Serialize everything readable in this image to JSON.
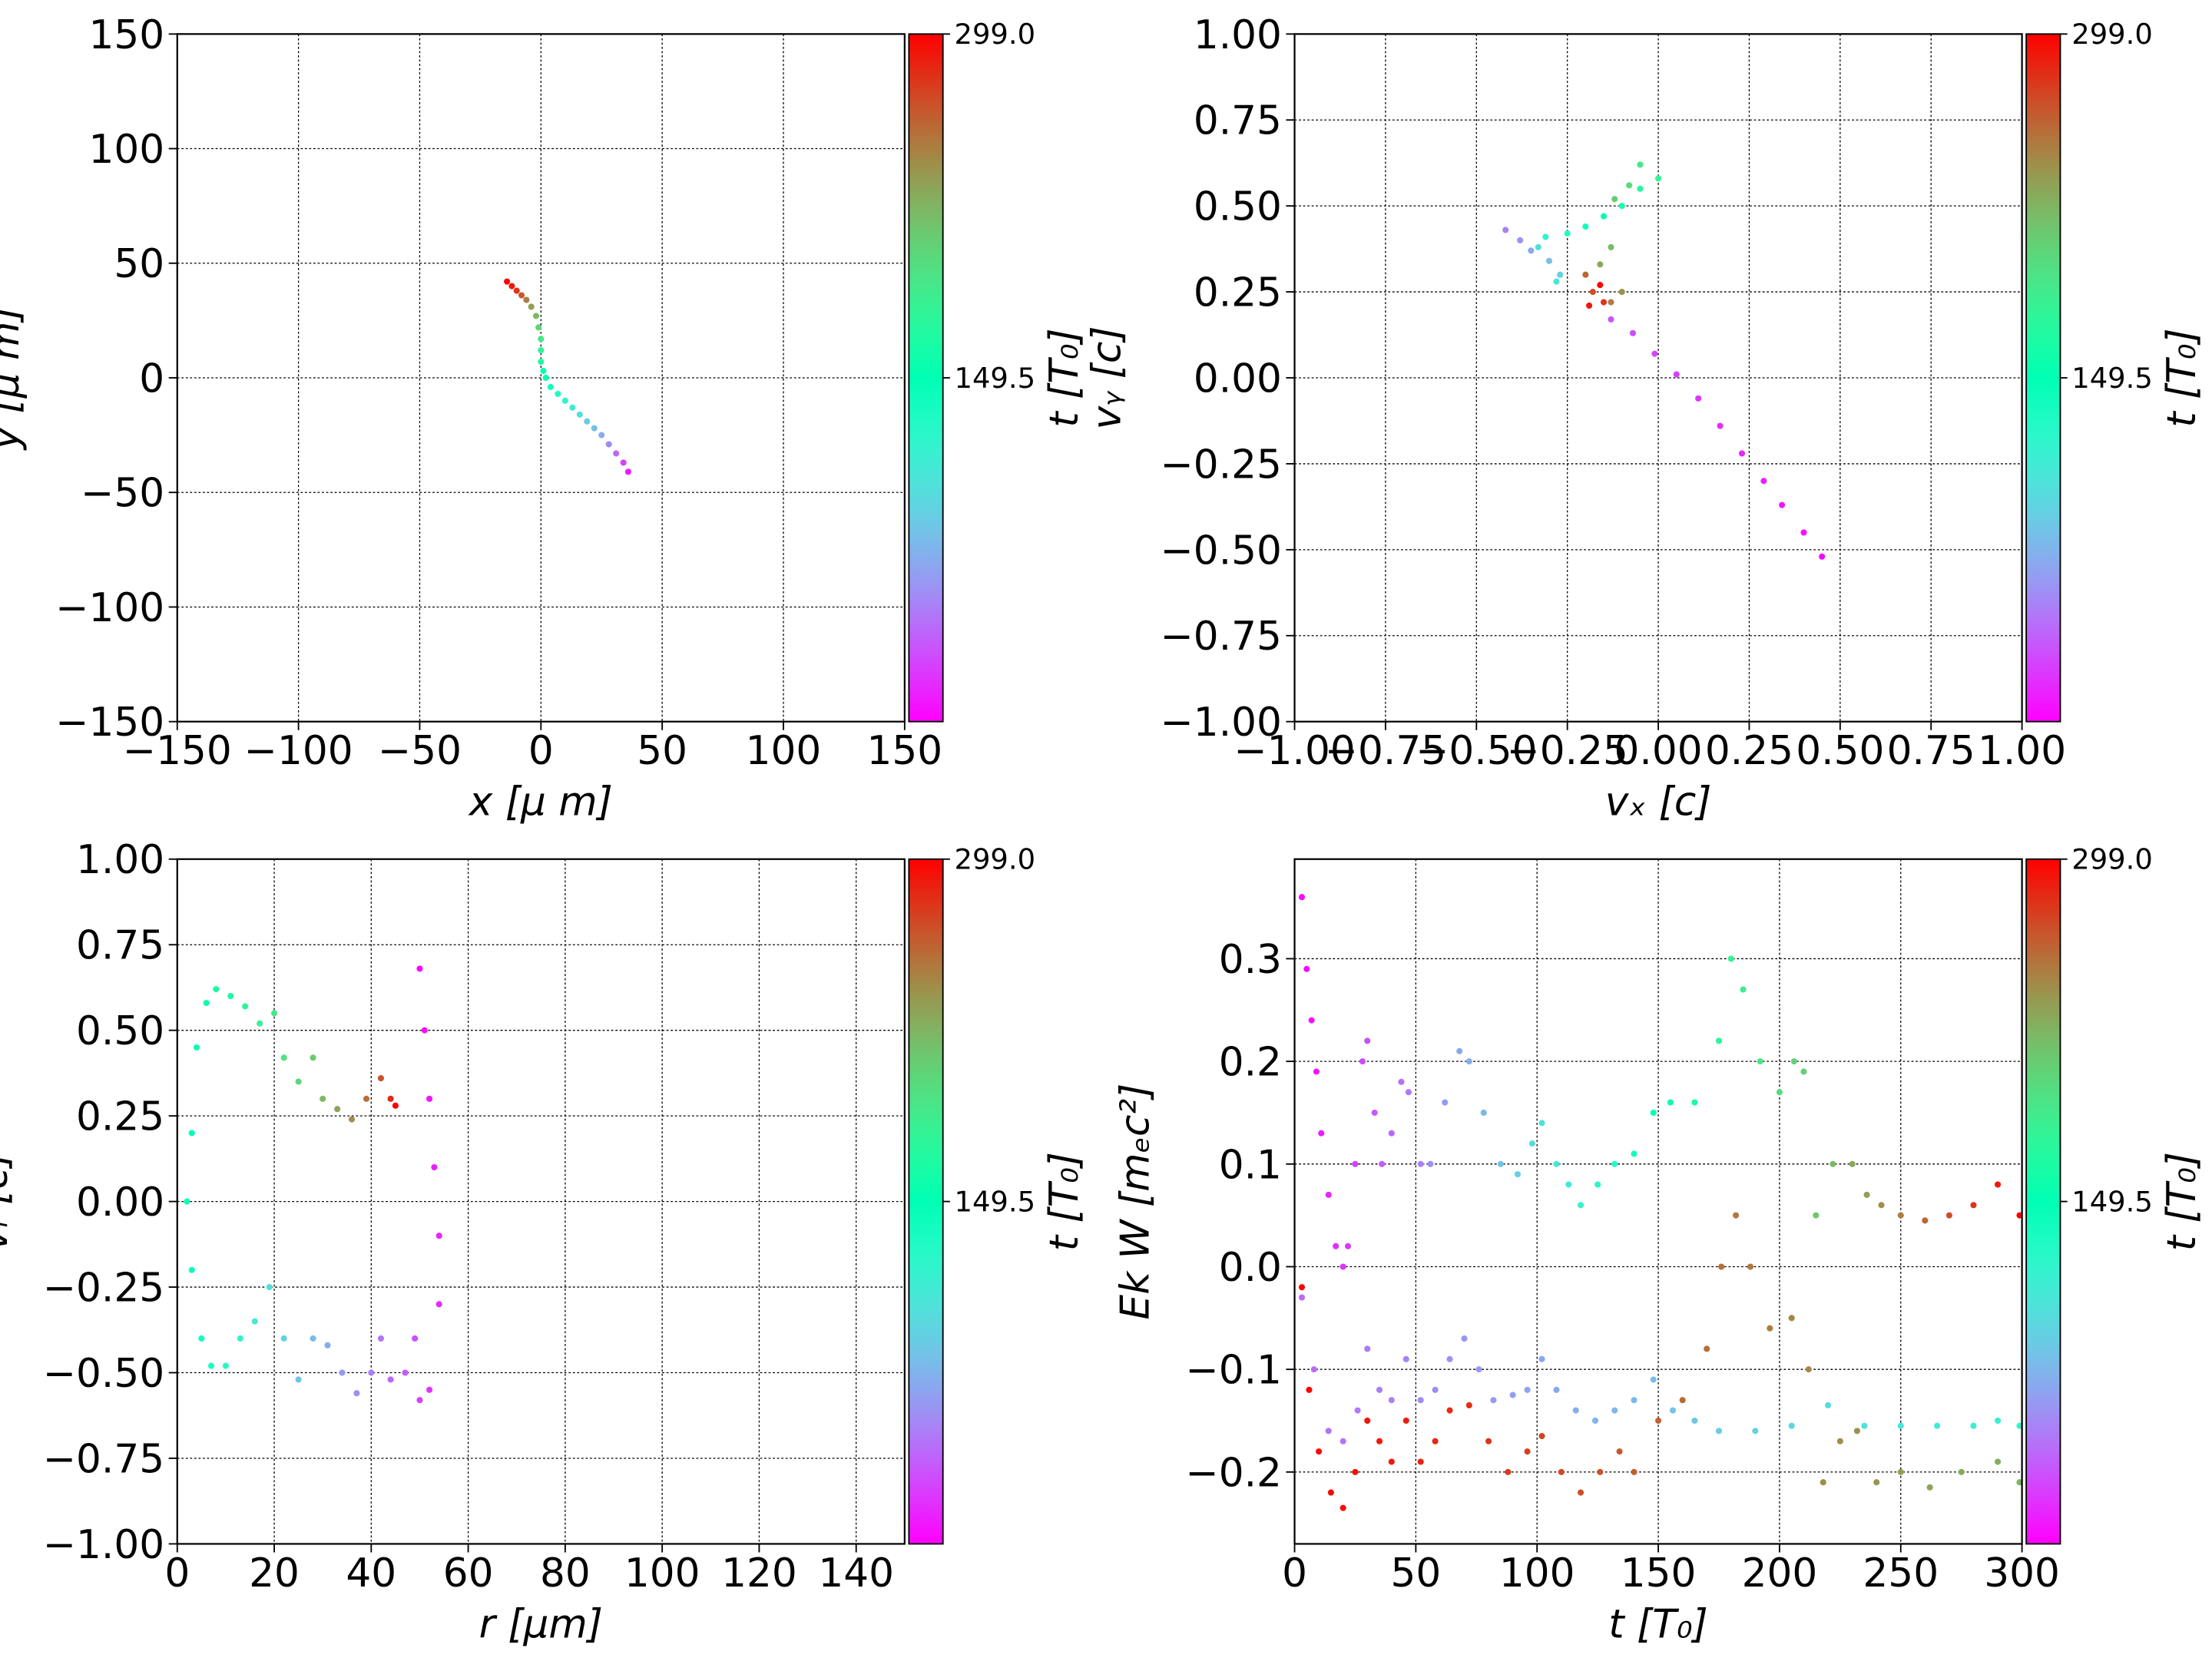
{
  "chart_data": [
    {
      "type": "scatter",
      "xlabel": "x  [μ m]",
      "ylabel": "y  [μ m]",
      "clabel": "t [T₀]",
      "colormap": "rainbow",
      "grid": true,
      "xlim": [
        -150,
        150
      ],
      "ylim": [
        -150,
        150
      ],
      "clim": [
        0,
        299
      ],
      "xticks": [
        {
          "value": -150,
          "label": "−150"
        },
        {
          "value": -100,
          "label": "−100"
        },
        {
          "value": -50,
          "label": "−50"
        },
        0,
        50,
        100,
        150
      ],
      "yticks": [
        {
          "value": -150,
          "label": "−150"
        },
        {
          "value": -100,
          "label": "−100"
        },
        {
          "value": -50,
          "label": "−50"
        },
        0,
        50,
        100,
        150
      ],
      "cticks": [
        149.5,
        {
          "value": 299,
          "label": "299.0"
        }
      ],
      "series": [
        {
          "x": [
            -14,
            -12,
            -10,
            -8,
            -6,
            -4,
            -2,
            -1,
            0,
            0,
            0,
            1,
            2,
            4,
            7,
            10,
            13,
            16,
            19,
            22,
            25,
            28,
            31,
            34,
            36
          ],
          "values": [
            42,
            40,
            38,
            36,
            34,
            31,
            27,
            22,
            17,
            12,
            7,
            3,
            0,
            -4,
            -7,
            -10,
            -13,
            -16,
            -19,
            -22,
            -25,
            -29,
            -33,
            -37,
            -41
          ],
          "c": [
            299,
            290,
            280,
            265,
            250,
            235,
            220,
            205,
            190,
            178,
            168,
            158,
            150,
            140,
            130,
            120,
            110,
            100,
            90,
            80,
            70,
            55,
            40,
            25,
            10
          ]
        }
      ]
    },
    {
      "type": "scatter",
      "xlabel": "vₓ [c]",
      "ylabel": "vᵧ [c]",
      "clabel": "t [T₀]",
      "colormap": "rainbow",
      "grid": true,
      "xlim": [
        -1,
        1
      ],
      "ylim": [
        -1,
        1
      ],
      "clim": [
        0,
        299
      ],
      "xticks": [
        {
          "value": -1,
          "label": "−1.00"
        },
        {
          "value": -0.75,
          "label": "−0.75"
        },
        {
          "value": -0.5,
          "label": "−0.50"
        },
        {
          "value": -0.25,
          "label": "−0.25"
        },
        {
          "value": 0,
          "label": "0.00"
        },
        0.25,
        {
          "value": 0.5,
          "label": "0.50"
        },
        0.75,
        {
          "value": 1,
          "label": "1.00"
        }
      ],
      "yticks": [
        {
          "value": -1,
          "label": "−1.00"
        },
        {
          "value": -0.75,
          "label": "−0.75"
        },
        {
          "value": -0.5,
          "label": "−0.50"
        },
        {
          "value": -0.25,
          "label": "−0.25"
        },
        {
          "value": 0,
          "label": "0.00"
        },
        0.25,
        {
          "value": 0.5,
          "label": "0.50"
        },
        0.75,
        {
          "value": 1,
          "label": "1.00"
        }
      ],
      "cticks": [
        149.5,
        {
          "value": 299,
          "label": "299.0"
        }
      ],
      "series": [
        {
          "x": [
            0.45,
            0.4,
            0.34,
            0.29,
            0.23,
            0.17,
            0.11,
            0.05,
            -0.01,
            -0.07,
            -0.13,
            -0.42,
            -0.38,
            -0.35,
            -0.3,
            -0.27,
            -0.33,
            -0.28,
            -0.31,
            -0.25,
            -0.2,
            -0.15,
            -0.1,
            -0.05,
            0.0,
            -0.05,
            -0.08,
            -0.12,
            -0.13,
            -0.16,
            -0.1,
            -0.13,
            -0.2,
            -0.18,
            -0.15,
            -0.19,
            -0.16
          ],
          "values": [
            -0.52,
            -0.45,
            -0.37,
            -0.3,
            -0.22,
            -0.14,
            -0.06,
            0.01,
            0.07,
            0.13,
            0.17,
            0.43,
            0.4,
            0.37,
            0.34,
            0.3,
            0.38,
            0.28,
            0.41,
            0.42,
            0.44,
            0.47,
            0.5,
            0.55,
            0.58,
            0.62,
            0.56,
            0.52,
            0.38,
            0.33,
            0.25,
            0.22,
            0.3,
            0.25,
            0.22,
            0.21,
            0.27
          ],
          "c": [
            3,
            6,
            9,
            12,
            15,
            18,
            21,
            24,
            27,
            30,
            33,
            50,
            60,
            70,
            80,
            90,
            100,
            110,
            120,
            130,
            140,
            150,
            160,
            170,
            180,
            190,
            200,
            210,
            220,
            230,
            240,
            250,
            260,
            270,
            280,
            290,
            299
          ]
        }
      ]
    },
    {
      "type": "scatter",
      "xlabel": "r [μm]",
      "ylabel": "vᵣ [c]",
      "clabel": "t [T₀]",
      "colormap": "rainbow",
      "grid": true,
      "xlim": [
        0,
        150
      ],
      "ylim": [
        -1,
        1
      ],
      "clim": [
        0,
        299
      ],
      "xticks": [
        0,
        20,
        40,
        60,
        80,
        100,
        120,
        140
      ],
      "yticks": [
        {
          "value": -1,
          "label": "−1.00"
        },
        {
          "value": -0.75,
          "label": "−0.75"
        },
        {
          "value": -0.5,
          "label": "−0.50"
        },
        {
          "value": -0.25,
          "label": "−0.25"
        },
        {
          "value": 0,
          "label": "0.00"
        },
        0.25,
        {
          "value": 0.5,
          "label": "0.50"
        },
        0.75,
        {
          "value": 1,
          "label": "1.00"
        }
      ],
      "cticks": [
        149.5,
        {
          "value": 299,
          "label": "299.0"
        }
      ],
      "series": [
        {
          "x": [
            50,
            51,
            52,
            53,
            54,
            54,
            52,
            50,
            49,
            47,
            44,
            42,
            40,
            37,
            34,
            31,
            28,
            25,
            22,
            19,
            16,
            13,
            10,
            7,
            5,
            3,
            2,
            3,
            4,
            6,
            8,
            11,
            14,
            17,
            20,
            22,
            25,
            28,
            30,
            33,
            36,
            39,
            42,
            44,
            45
          ],
          "values": [
            0.68,
            0.5,
            0.3,
            0.1,
            -0.1,
            -0.3,
            -0.55,
            -0.58,
            -0.4,
            -0.5,
            -0.52,
            -0.4,
            -0.5,
            -0.56,
            -0.5,
            -0.42,
            -0.4,
            -0.52,
            -0.4,
            -0.25,
            -0.35,
            -0.4,
            -0.48,
            -0.48,
            -0.4,
            -0.2,
            0,
            0.2,
            0.45,
            0.58,
            0.62,
            0.6,
            0.57,
            0.52,
            0.55,
            0.42,
            0.35,
            0.42,
            0.3,
            0.27,
            0.24,
            0.3,
            0.36,
            0.3,
            0.28
          ],
          "c": [
            2,
            5,
            8,
            11,
            14,
            17,
            20,
            25,
            30,
            35,
            40,
            45,
            50,
            55,
            62,
            70,
            78,
            85,
            92,
            100,
            108,
            116,
            124,
            132,
            138,
            142,
            145,
            148,
            152,
            158,
            164,
            170,
            176,
            182,
            188,
            196,
            204,
            212,
            222,
            232,
            242,
            255,
            268,
            284,
            299
          ]
        }
      ]
    },
    {
      "type": "scatter",
      "xlabel": "t [T₀]",
      "ylabel": "Ek W [mₑc²]",
      "clabel": "t [T₀]",
      "colormap": "rainbow",
      "grid": true,
      "xlim": [
        0,
        300
      ],
      "ylim": [
        -0.27,
        0.397
      ],
      "clim": [
        0,
        299
      ],
      "xticks": [
        0,
        50,
        100,
        150,
        200,
        250,
        300
      ],
      "yticks": [
        {
          "value": -0.2,
          "label": "−0.2"
        },
        {
          "value": -0.1,
          "label": "−0.1"
        },
        {
          "value": 0,
          "label": "0.0"
        },
        0.1,
        0.2,
        0.3
      ],
      "cticks": [
        149.5,
        {
          "value": 299,
          "label": "299.0"
        }
      ],
      "series": [
        {
          "x": [
            3,
            5,
            7,
            9,
            11,
            14,
            17,
            20,
            22,
            25,
            28,
            30,
            33,
            36,
            40,
            44,
            47,
            52,
            56,
            62,
            68,
            72,
            78,
            85,
            92,
            98,
            102,
            108,
            113,
            118,
            125,
            132,
            140,
            148,
            155,
            165,
            175,
            180,
            185,
            192,
            200,
            206,
            210,
            215,
            222,
            230,
            236,
            242,
            250,
            260,
            270,
            280,
            290,
            299
          ],
          "values": [
            0.36,
            0.29,
            0.24,
            0.19,
            0.13,
            0.07,
            0.02,
            0.0,
            0.02,
            0.1,
            0.2,
            0.22,
            0.15,
            0.1,
            0.13,
            0.18,
            0.17,
            0.1,
            0.1,
            0.16,
            0.21,
            0.2,
            0.15,
            0.1,
            0.09,
            0.12,
            0.14,
            0.1,
            0.08,
            0.06,
            0.08,
            0.1,
            0.11,
            0.15,
            0.16,
            0.16,
            0.22,
            0.3,
            0.27,
            0.2,
            0.17,
            0.2,
            0.19,
            0.05,
            0.1,
            0.1,
            0.07,
            0.06,
            0.05,
            0.045,
            0.05,
            0.06,
            0.08,
            0.05
          ],
          "c": [
            3,
            5,
            7,
            9,
            11,
            14,
            17,
            20,
            22,
            25,
            28,
            30,
            33,
            36,
            40,
            44,
            47,
            52,
            56,
            62,
            68,
            72,
            78,
            85,
            92,
            98,
            102,
            108,
            113,
            118,
            125,
            132,
            140,
            148,
            155,
            165,
            175,
            180,
            185,
            192,
            200,
            206,
            210,
            215,
            222,
            230,
            236,
            242,
            250,
            260,
            270,
            280,
            290,
            299
          ]
        },
        {
          "x": [
            3,
            8,
            14,
            20,
            26,
            30,
            35,
            40,
            46,
            52,
            58,
            64,
            70,
            76,
            82,
            90,
            96,
            102,
            108,
            116,
            124,
            132,
            140,
            148,
            156,
            165,
            175,
            190,
            205,
            220,
            235,
            250,
            265,
            280,
            290,
            299
          ],
          "values": [
            -0.03,
            -0.1,
            -0.16,
            -0.17,
            -0.14,
            -0.08,
            -0.12,
            -0.13,
            -0.09,
            -0.13,
            -0.12,
            -0.09,
            -0.07,
            -0.1,
            -0.13,
            -0.125,
            -0.12,
            -0.09,
            -0.12,
            -0.14,
            -0.15,
            -0.14,
            -0.13,
            -0.11,
            -0.14,
            -0.15,
            -0.16,
            -0.16,
            -0.155,
            -0.135,
            -0.155,
            -0.155,
            -0.155,
            -0.155,
            -0.15,
            -0.155
          ],
          "c": [
            41,
            42,
            44,
            45,
            47,
            48,
            49,
            51,
            52,
            54,
            56,
            57,
            59,
            61,
            62,
            64,
            66,
            68,
            69,
            71,
            73,
            76,
            78,
            80,
            82,
            85,
            87,
            91,
            95,
            99,
            103,
            108,
            112,
            116,
            118,
            121
          ]
        },
        {
          "x": [
            3,
            6,
            10,
            15,
            20,
            25,
            30,
            35,
            40,
            46,
            52,
            58,
            64,
            72,
            80,
            88,
            96,
            102,
            110,
            118,
            126,
            134,
            140,
            150,
            160,
            170,
            176,
            182,
            188,
            196,
            205,
            212,
            218,
            225,
            232,
            240,
            250,
            262,
            275,
            290,
            299
          ],
          "values": [
            -0.02,
            -0.12,
            -0.18,
            -0.22,
            -0.235,
            -0.2,
            -0.15,
            -0.17,
            -0.19,
            -0.15,
            -0.19,
            -0.17,
            -0.14,
            -0.135,
            -0.17,
            -0.2,
            -0.18,
            -0.165,
            -0.2,
            -0.22,
            -0.2,
            -0.18,
            -0.2,
            -0.15,
            -0.13,
            -0.08,
            0.0,
            0.05,
            0.0,
            -0.06,
            -0.05,
            -0.1,
            -0.21,
            -0.17,
            -0.16,
            -0.21,
            -0.2,
            -0.215,
            -0.2,
            -0.19,
            -0.21
          ],
          "c": [
            298,
            298,
            296,
            295,
            294,
            293,
            292,
            290,
            289,
            288,
            286,
            284,
            283,
            281,
            279,
            277,
            275,
            273,
            271,
            269,
            267,
            265,
            264,
            261,
            259,
            256,
            255,
            253,
            252,
            250,
            248,
            246,
            244,
            243,
            241,
            239,
            236,
            233,
            230,
            227,
            224
          ]
        }
      ]
    }
  ]
}
